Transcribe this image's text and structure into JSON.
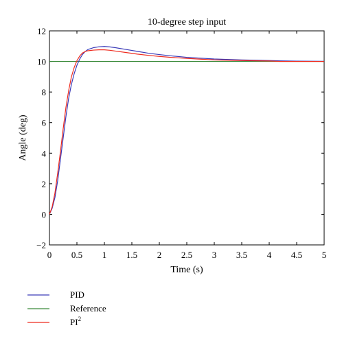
{
  "chart_data": {
    "type": "line",
    "title": "10-degree step input",
    "xlabel": "Time (s)",
    "ylabel": "Angle (deg)",
    "xlim": [
      0,
      5
    ],
    "ylim": [
      -2,
      12
    ],
    "x_ticks": [
      0,
      0.5,
      1,
      1.5,
      2,
      2.5,
      3,
      3.5,
      4,
      4.5,
      5
    ],
    "x_tick_labels": [
      "0",
      "0.5",
      "1",
      "1.5",
      "2",
      "2.5",
      "3",
      "3.5",
      "4",
      "4.5",
      "5"
    ],
    "y_ticks": [
      -2,
      0,
      2,
      4,
      6,
      8,
      10,
      12
    ],
    "y_tick_labels": [
      "−2",
      "0",
      "2",
      "4",
      "6",
      "8",
      "10",
      "12"
    ],
    "grid": false,
    "legend_position": "bottom-left, below plot",
    "series": [
      {
        "name": "PID",
        "color": "#3a3ab8",
        "x": [
          0,
          0.05,
          0.1,
          0.15,
          0.2,
          0.25,
          0.3,
          0.35,
          0.4,
          0.45,
          0.5,
          0.55,
          0.6,
          0.65,
          0.7,
          0.8,
          0.9,
          1.0,
          1.1,
          1.2,
          1.4,
          1.6,
          1.8,
          2.0,
          2.2,
          2.5,
          3.0,
          3.5,
          4.0,
          4.2,
          4.5,
          5.0
        ],
        "y": [
          0,
          0.4,
          1.1,
          2.2,
          3.6,
          5.0,
          6.4,
          7.6,
          8.5,
          9.2,
          9.75,
          10.15,
          10.45,
          10.65,
          10.78,
          10.9,
          10.96,
          10.98,
          10.95,
          10.9,
          10.78,
          10.66,
          10.54,
          10.45,
          10.37,
          10.27,
          10.16,
          10.1,
          10.06,
          10.04,
          10.02,
          10.01
        ]
      },
      {
        "name": "Reference",
        "color": "#3a8a3a",
        "x": [
          0,
          5
        ],
        "y": [
          10,
          10
        ]
      },
      {
        "name": "PI²",
        "color": "#ee2a1e",
        "x": [
          0,
          0.05,
          0.1,
          0.15,
          0.2,
          0.25,
          0.3,
          0.35,
          0.4,
          0.45,
          0.5,
          0.55,
          0.6,
          0.65,
          0.7,
          0.8,
          0.9,
          1.0,
          1.1,
          1.2,
          1.4,
          1.6,
          1.8,
          2.0,
          2.2,
          2.5,
          3.0,
          3.5,
          4.0,
          4.2,
          4.5,
          5.0
        ],
        "y": [
          0,
          0.5,
          1.4,
          2.7,
          4.1,
          5.6,
          7.0,
          8.1,
          9.0,
          9.6,
          10.05,
          10.35,
          10.55,
          10.65,
          10.7,
          10.74,
          10.76,
          10.76,
          10.73,
          10.68,
          10.58,
          10.48,
          10.4,
          10.33,
          10.27,
          10.2,
          10.1,
          10.06,
          10.03,
          10.0,
          10.0,
          10.0
        ]
      }
    ],
    "legend": [
      {
        "label": "PID",
        "sup": ""
      },
      {
        "label": "Reference",
        "sup": ""
      },
      {
        "label": "PI",
        "sup": "2"
      }
    ]
  }
}
